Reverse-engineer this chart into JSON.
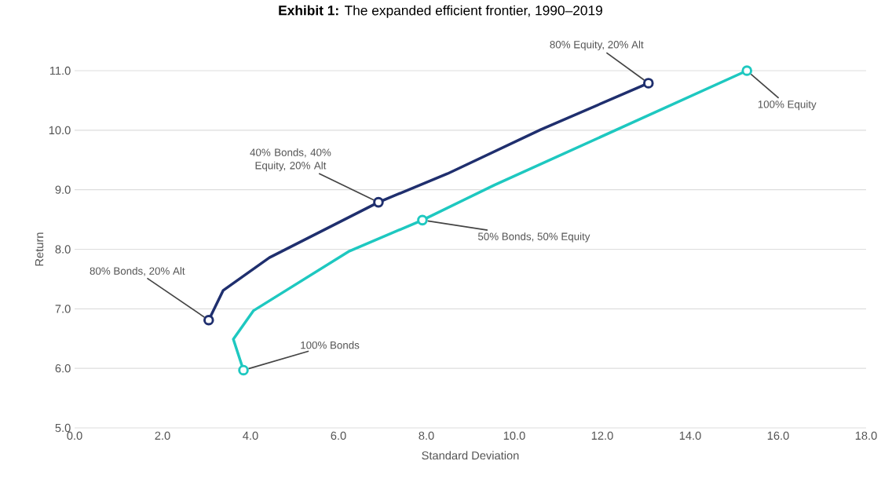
{
  "chart_data": {
    "type": "line",
    "title": "**Exhibit 1:** The expanded efficient frontier, 1990–2019",
    "xlabel": "Standard Deviation",
    "ylabel": "Return",
    "xlim": [
      0,
      18
    ],
    "ylim": [
      5,
      11
    ],
    "xticks": [
      {
        "value": 0,
        "label": "0.0"
      },
      {
        "value": 2,
        "label": "2.0"
      },
      {
        "value": 4,
        "label": "4.0"
      },
      {
        "value": 6,
        "label": "6.0"
      },
      {
        "value": 8,
        "label": "8.0"
      },
      {
        "value": 10,
        "label": "10.0"
      },
      {
        "value": 12,
        "label": "12.0"
      },
      {
        "value": 14,
        "label": "14.0"
      },
      {
        "value": 16,
        "label": "16.0"
      },
      {
        "value": 18,
        "label": "18.0"
      }
    ],
    "yticks": [
      {
        "value": 5,
        "label": "5.0"
      },
      {
        "value": 6,
        "label": "6.0"
      },
      {
        "value": 7,
        "label": "7.0"
      },
      {
        "value": 8,
        "label": "8.0"
      },
      {
        "value": 9,
        "label": "9.0"
      },
      {
        "value": 10,
        "label": "10.0"
      },
      {
        "value": 11,
        "label": "11.0"
      }
    ],
    "grid": "y",
    "series": [
      {
        "color": "#1f2f6e",
        "marker": "none",
        "x": [
          3.05,
          3.38,
          4.43,
          6.91,
          8.48,
          10.6,
          13.05
        ],
        "values": [
          6.81,
          7.31,
          7.86,
          8.79,
          9.27,
          10.01,
          10.79
        ]
      },
      {
        "color": "#1ec8c0",
        "marker": "none",
        "x": [
          3.84,
          3.61,
          4.07,
          6.25,
          7.91,
          9.55,
          15.29
        ],
        "values": [
          5.97,
          6.49,
          6.97,
          7.97,
          8.49,
          9.08,
          11.0
        ]
      },
      {
        "type": "scatter",
        "color": "#1f2f6e",
        "marker": "circle",
        "x": [
          3.05,
          6.91,
          13.05
        ],
        "values": [
          6.81,
          8.79,
          10.79
        ]
      },
      {
        "type": "scatter",
        "color": "#1ec8c0",
        "marker": "circle",
        "x": [
          3.84,
          7.91,
          15.29
        ],
        "values": [
          5.97,
          8.49,
          11.0
        ]
      }
    ],
    "annotations": [
      {
        "text": "80% Equity, 20% Alt",
        "x": 13.05,
        "y": 10.79
      },
      {
        "text": "100% Equity",
        "x": 15.29,
        "y": 11.0
      },
      {
        "text": "40% Bonds, 40% Equity, 20% Alt",
        "x": 6.91,
        "y": 8.79
      },
      {
        "text": "50% Bonds, 50% Equity",
        "x": 7.91,
        "y": 8.49
      },
      {
        "text": "80% Bonds, 20% Alt",
        "x": 3.05,
        "y": 6.81
      },
      {
        "text": "100% Bonds",
        "x": 3.84,
        "y": 5.97
      }
    ]
  }
}
